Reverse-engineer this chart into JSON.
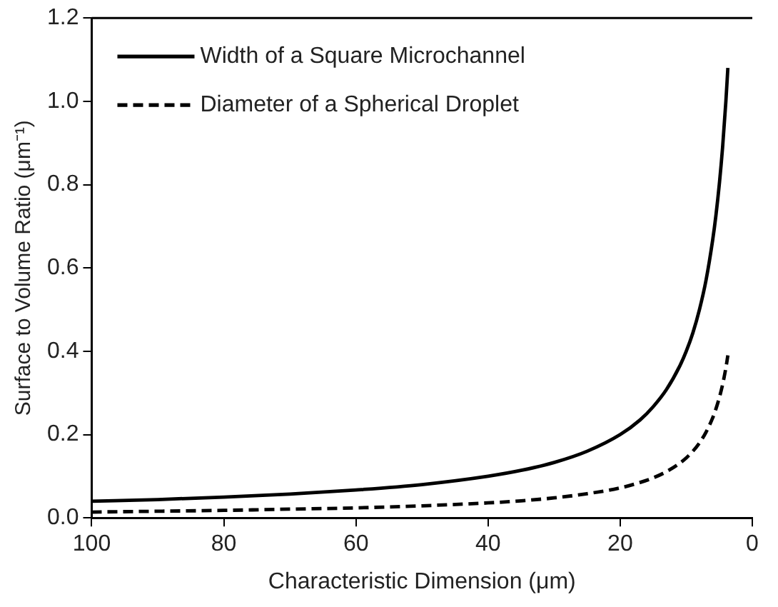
{
  "chart_data": {
    "type": "line",
    "xlabel": "Characteristic Dimension (μm)",
    "ylabel": "Surface to Volume Ratio (μm⁻¹)",
    "xlim": [
      100,
      0
    ],
    "xticks": [
      100,
      80,
      60,
      40,
      20,
      0
    ],
    "ylim": [
      0,
      1.2
    ],
    "yticks": [
      {
        "value": 0,
        "label": "0.0"
      },
      0.2,
      0.4,
      0.6,
      0.8,
      {
        "value": 1,
        "label": "1.0"
      },
      1.2
    ],
    "legend": "top left",
    "grid": false,
    "marker": "none",
    "x": [
      100,
      90,
      80,
      70,
      60,
      50,
      40,
      35,
      30,
      25,
      20,
      17,
      15,
      13,
      11,
      10,
      9,
      8,
      7,
      6,
      5.5,
      5,
      4.5,
      4,
      3.7
    ],
    "series": [
      {
        "name": "Width of a Square Microchannel",
        "color": "#000000",
        "line_style": "solid",
        "values": [
          0.04,
          0.044,
          0.05,
          0.057,
          0.067,
          0.08,
          0.1,
          0.114,
          0.133,
          0.16,
          0.2,
          0.235,
          0.267,
          0.308,
          0.364,
          0.4,
          0.444,
          0.5,
          0.571,
          0.667,
          0.727,
          0.8,
          0.889,
          1.0,
          1.08
        ]
      },
      {
        "name": "Diameter of a Spherical Droplet",
        "color": "#000000",
        "line_style": "dashed",
        "values": [
          0.014,
          0.016,
          0.018,
          0.021,
          0.024,
          0.029,
          0.036,
          0.041,
          0.048,
          0.058,
          0.072,
          0.085,
          0.096,
          0.111,
          0.131,
          0.144,
          0.16,
          0.18,
          0.206,
          0.24,
          0.262,
          0.288,
          0.32,
          0.36,
          0.39
        ]
      }
    ]
  }
}
